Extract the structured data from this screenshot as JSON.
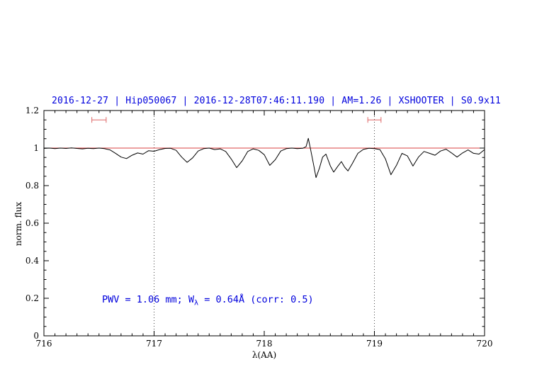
{
  "chart_data": {
    "type": "line",
    "title": "2016-12-27 | Hip050067 | 2016-12-28T07:46:11.190 | AM=1.26 | XSHOOTER | S0.9x11",
    "xlabel": "λ(AA)",
    "ylabel": "norm. flux",
    "xlim": [
      716,
      720
    ],
    "ylim": [
      0,
      1.2
    ],
    "x_ticks": [
      716,
      717,
      718,
      719,
      720
    ],
    "y_ticks": [
      0,
      0.2,
      0.4,
      0.6,
      0.8,
      1,
      1.2
    ],
    "dotted_vlines": [
      717,
      719
    ],
    "grid": false,
    "legend": "none",
    "colors": {
      "title": "#0000dd",
      "annotation": "#0000dd",
      "spectrum": "#000000",
      "continuum": "#cc0000",
      "markers": "#dd6666",
      "axis": "#000000",
      "dotted": "#444444"
    },
    "continuum": {
      "y": 1.0,
      "color": "#cc0000"
    },
    "annotation": {
      "prefix": "PWV = 1.06 mm; W",
      "sub": "λ",
      "suffix": " = 0.64Å (corr: 0.5)",
      "x": 716.53,
      "y": 0.2
    },
    "markers": [
      {
        "x_center": 716.5,
        "half_width": 0.065,
        "y": 1.15,
        "color": "#dd6666"
      },
      {
        "x_center": 719.0,
        "half_width": 0.06,
        "y": 1.15,
        "color": "#dd6666"
      }
    ],
    "series": [
      {
        "name": "spectrum",
        "color": "#000000",
        "x": [
          716.0,
          716.05,
          716.1,
          716.15,
          716.2,
          716.25,
          716.3,
          716.35,
          716.4,
          716.45,
          716.5,
          716.55,
          716.6,
          716.65,
          716.7,
          716.75,
          716.8,
          716.85,
          716.9,
          716.95,
          717.0,
          717.05,
          717.1,
          717.15,
          717.2,
          717.25,
          717.3,
          717.35,
          717.4,
          717.45,
          717.5,
          717.55,
          717.6,
          717.65,
          717.7,
          717.75,
          717.8,
          717.85,
          717.9,
          717.95,
          718.0,
          718.05,
          718.1,
          718.15,
          718.2,
          718.25,
          718.3,
          718.35,
          718.38,
          718.4,
          718.42,
          718.45,
          718.47,
          718.5,
          718.53,
          718.56,
          718.6,
          718.63,
          718.67,
          718.7,
          718.73,
          718.76,
          718.8,
          718.85,
          718.9,
          718.95,
          719.0,
          719.05,
          719.1,
          719.15,
          719.2,
          719.25,
          719.3,
          719.35,
          719.4,
          719.45,
          719.5,
          719.55,
          719.6,
          719.65,
          719.7,
          719.75,
          719.8,
          719.85,
          719.9,
          719.95,
          720.0
        ],
        "y": [
          0.998,
          1.0,
          0.997,
          1.0,
          0.998,
          1.001,
          0.998,
          0.996,
          0.999,
          0.997,
          1.0,
          0.997,
          0.99,
          0.972,
          0.952,
          0.944,
          0.962,
          0.974,
          0.968,
          0.986,
          0.983,
          0.992,
          0.998,
          0.999,
          0.988,
          0.952,
          0.924,
          0.948,
          0.984,
          0.997,
          1.0,
          0.992,
          0.996,
          0.982,
          0.942,
          0.896,
          0.932,
          0.982,
          0.996,
          0.988,
          0.965,
          0.908,
          0.938,
          0.984,
          0.997,
          1.0,
          0.997,
          0.999,
          1.008,
          1.052,
          0.995,
          0.905,
          0.843,
          0.892,
          0.952,
          0.968,
          0.905,
          0.872,
          0.905,
          0.928,
          0.898,
          0.878,
          0.918,
          0.972,
          0.993,
          0.999,
          0.997,
          0.992,
          0.942,
          0.858,
          0.908,
          0.972,
          0.958,
          0.904,
          0.952,
          0.982,
          0.972,
          0.962,
          0.984,
          0.994,
          0.974,
          0.952,
          0.974,
          0.99,
          0.972,
          0.968,
          0.992
        ]
      }
    ]
  }
}
